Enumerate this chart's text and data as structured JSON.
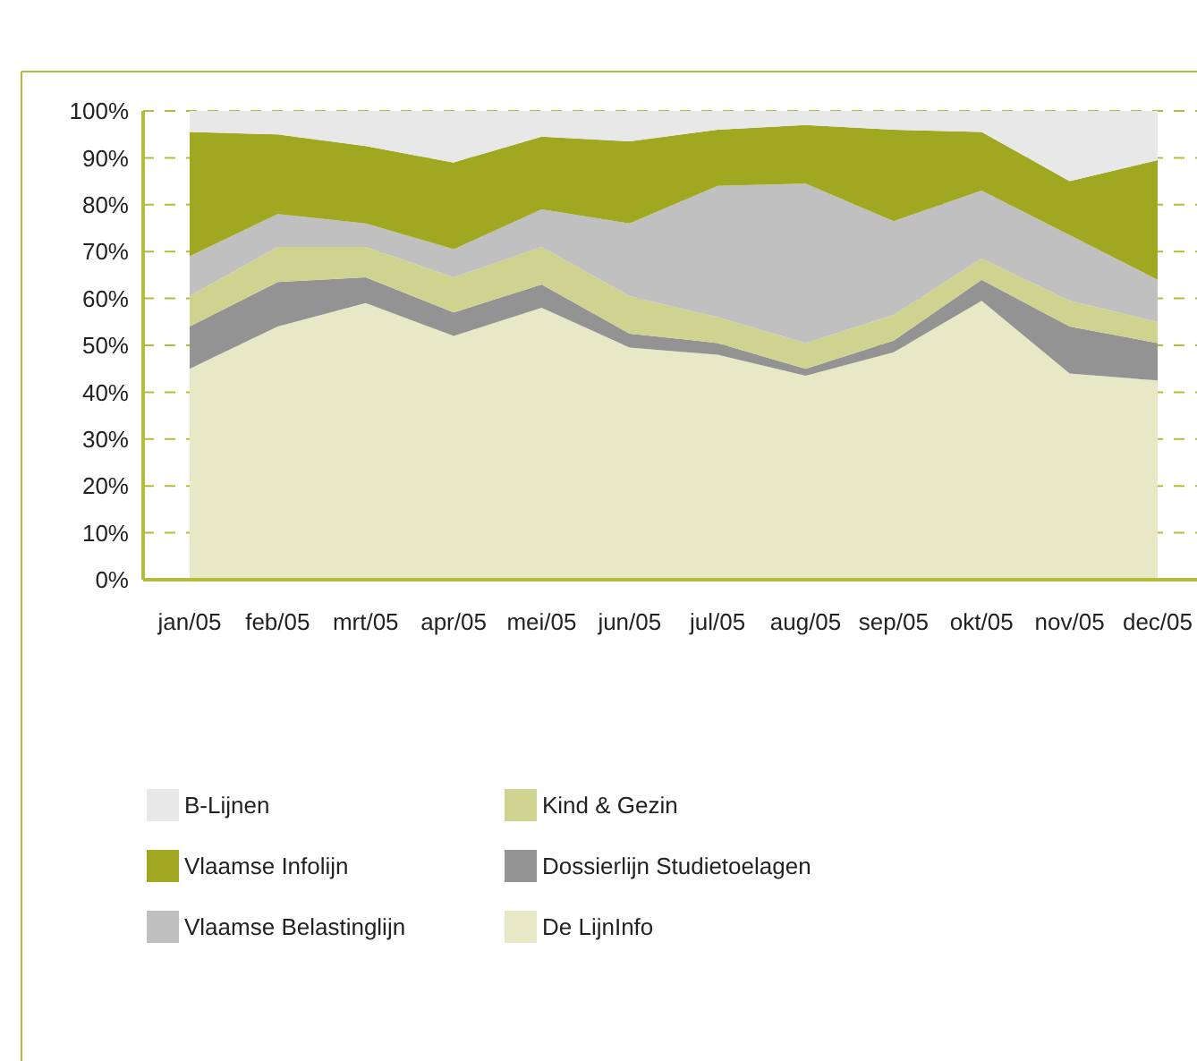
{
  "chart_data": {
    "type": "area",
    "stacked": true,
    "categories": [
      "jan/05",
      "feb/05",
      "mrt/05",
      "apr/05",
      "mei/05",
      "jun/05",
      "jul/05",
      "aug/05",
      "sep/05",
      "okt/05",
      "nov/05",
      "dec/05"
    ],
    "series": [
      {
        "name": "De LijnInfo",
        "color": "#e6e8c6",
        "values": [
          45,
          54,
          59,
          52,
          58,
          49.5,
          48,
          43.5,
          48.5,
          59.5,
          44,
          42.5
        ]
      },
      {
        "name": "Dossierlijn Studietoelagen",
        "color": "#939393",
        "values": [
          9,
          9.5,
          5.5,
          5,
          5,
          3,
          2.5,
          1.5,
          2.5,
          4.5,
          10,
          8
        ]
      },
      {
        "name": "Kind & Gezin",
        "color": "#cfd38f",
        "values": [
          6.5,
          7.5,
          6.5,
          7.5,
          8,
          8,
          5.5,
          5.5,
          5.5,
          4.5,
          5.5,
          4.5
        ]
      },
      {
        "name": "Vlaamse Belastinglijn",
        "color": "#c0c0c0",
        "values": [
          8.5,
          7,
          5,
          6,
          8,
          15.5,
          28,
          34,
          20,
          14.5,
          14,
          9
        ]
      },
      {
        "name": "Vlaamse Infolijn",
        "color": "#a0a720",
        "values": [
          26.5,
          17,
          16.5,
          18.5,
          15.5,
          17.5,
          12,
          12.5,
          19.5,
          12.5,
          11.5,
          25.5
        ]
      },
      {
        "name": "B-Lijnen",
        "color": "#e8e8e8",
        "values": [
          4.5,
          5,
          7.5,
          11,
          5.5,
          6.5,
          4,
          3,
          4,
          4.5,
          15,
          10.5
        ]
      }
    ],
    "ylim": [
      0,
      100
    ],
    "yticks": [
      {
        "value": 0,
        "label": "0%"
      },
      {
        "value": 10,
        "label": "10%"
      },
      {
        "value": 20,
        "label": "20%"
      },
      {
        "value": 30,
        "label": "30%"
      },
      {
        "value": 40,
        "label": "40%"
      },
      {
        "value": 50,
        "label": "50%"
      },
      {
        "value": 60,
        "label": "60%"
      },
      {
        "value": 70,
        "label": "70%"
      },
      {
        "value": 80,
        "label": "80%"
      },
      {
        "value": 90,
        "label": "90%"
      },
      {
        "value": 100,
        "label": "100%"
      }
    ],
    "grid": "y",
    "legend": "bottom"
  }
}
